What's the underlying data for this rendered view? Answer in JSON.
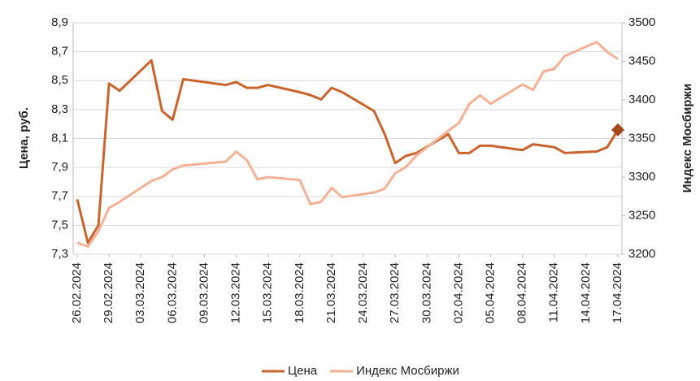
{
  "chart_data": {
    "type": "line",
    "y_label": "Цена, руб.",
    "y2_label": "Индекс Мосбиржи",
    "x": [
      "26.02.2024",
      "27.02.2024",
      "28.02.2024",
      "29.02.2024",
      "01.03.2024",
      "04.03.2024",
      "05.03.2024",
      "06.03.2024",
      "07.03.2024",
      "11.03.2024",
      "12.03.2024",
      "13.03.2024",
      "14.03.2024",
      "15.03.2024",
      "18.03.2024",
      "19.03.2024",
      "20.03.2024",
      "21.03.2024",
      "22.03.2024",
      "25.03.2024",
      "26.03.2024",
      "27.03.2024",
      "28.03.2024",
      "29.03.2024",
      "01.04.2024",
      "02.04.2024",
      "03.04.2024",
      "04.04.2024",
      "05.04.2024",
      "08.04.2024",
      "09.04.2024",
      "10.04.2024",
      "11.04.2024",
      "12.04.2024",
      "15.04.2024",
      "16.04.2024",
      "17.04.2024"
    ],
    "series": [
      {
        "name": "Цена",
        "color": "#c8642c",
        "axis": "y",
        "last_point_marker": "diamond",
        "marker_color": "#a3471c",
        "values": [
          7.68,
          7.38,
          7.5,
          8.48,
          8.43,
          8.64,
          8.29,
          8.23,
          8.51,
          8.47,
          8.49,
          8.45,
          8.45,
          8.47,
          8.42,
          8.4,
          8.37,
          8.45,
          8.42,
          8.29,
          8.13,
          7.93,
          7.98,
          8.0,
          8.13,
          8.0,
          8.0,
          8.05,
          8.05,
          8.02,
          8.06,
          8.05,
          8.04,
          8.0,
          8.01,
          8.04,
          8.16
        ]
      },
      {
        "name": "Индекс Мосбиржи",
        "color": "#f4b196",
        "axis": "y2",
        "values": [
          3215,
          3210,
          3230,
          3260,
          3268,
          3295,
          3300,
          3310,
          3315,
          3320,
          3333,
          3322,
          3297,
          3300,
          3296,
          3265,
          3268,
          3286,
          3274,
          3280,
          3285,
          3305,
          3313,
          3328,
          3360,
          3370,
          3395,
          3406,
          3395,
          3420,
          3413,
          3437,
          3440,
          3457,
          3475,
          3462,
          3453
        ]
      }
    ],
    "xticks": [
      "26.02.2024",
      "29.02.2024",
      "03.03.2024",
      "06.03.2024",
      "09.03.2024",
      "12.03.2024",
      "15.03.2024",
      "18.03.2024",
      "21.03.2024",
      "24.03.2024",
      "27.03.2024",
      "30.03.2024",
      "02.04.2024",
      "05.04.2024",
      "08.04.2024",
      "11.04.2024",
      "14.04.2024",
      "17.04.2024"
    ],
    "ylim": [
      7.3,
      8.9
    ],
    "yticks": [
      {
        "value": 7.3,
        "label": "7,3"
      },
      {
        "value": 7.5,
        "label": "7,5"
      },
      {
        "value": 7.7,
        "label": "7,7"
      },
      {
        "value": 7.9,
        "label": "7,9"
      },
      {
        "value": 8.1,
        "label": "8,1"
      },
      {
        "value": 8.3,
        "label": "8,3"
      },
      {
        "value": 8.5,
        "label": "8,5"
      },
      {
        "value": 8.7,
        "label": "8,7"
      },
      {
        "value": 8.9,
        "label": "8,9"
      }
    ],
    "y2lim": [
      3200,
      3500
    ],
    "y2ticks": [
      3200,
      3250,
      3300,
      3350,
      3400,
      3450,
      3500
    ],
    "grid": true,
    "legend": "bottom"
  }
}
